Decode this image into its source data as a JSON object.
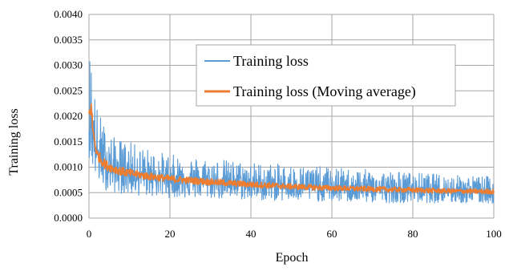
{
  "chart_data": {
    "type": "line",
    "title": "",
    "xlabel": "Epoch",
    "ylabel": "Training loss",
    "xlim": [
      0,
      100
    ],
    "ylim": [
      0,
      0.004
    ],
    "x_ticks": [
      0,
      20,
      40,
      60,
      80,
      100
    ],
    "x_tick_labels": [
      "0",
      "20",
      "40",
      "60",
      "80",
      "100"
    ],
    "y_ticks": [
      0,
      0.0005,
      0.001,
      0.0015,
      0.002,
      0.0025,
      0.003,
      0.0035,
      0.004
    ],
    "y_tick_labels": [
      "0.0000",
      "0.0005",
      "0.0010",
      "0.0015",
      "0.0020",
      "0.0025",
      "0.0030",
      "0.0035",
      "0.0040"
    ],
    "grid": true,
    "legend_position": "top-right",
    "series": [
      {
        "name": "Training loss",
        "color": "#5B9BD5",
        "style": "noisy-band",
        "x": [
          0,
          0.5,
          1,
          2,
          4,
          6,
          8,
          10,
          15,
          20,
          30,
          40,
          50,
          60,
          70,
          80,
          90,
          100
        ],
        "center": [
          0.0018,
          0.0019,
          0.0016,
          0.00125,
          0.00105,
          0.00097,
          0.00092,
          0.00088,
          0.00082,
          0.00077,
          0.00071,
          0.00066,
          0.00062,
          0.00059,
          0.00057,
          0.00055,
          0.00053,
          0.00052
        ],
        "upper": [
          0.0033,
          0.0034,
          0.0028,
          0.0022,
          0.0018,
          0.0016,
          0.00155,
          0.0015,
          0.00135,
          0.00125,
          0.00118,
          0.0011,
          0.00105,
          0.001,
          0.00095,
          0.0009,
          0.00085,
          0.00082
        ],
        "lower": [
          0.0012,
          0.0011,
          0.0009,
          0.0007,
          0.00055,
          0.0005,
          0.00048,
          0.00045,
          0.00042,
          0.0004,
          0.00038,
          0.00035,
          0.00033,
          0.00032,
          0.0003,
          0.0003,
          0.00029,
          0.00028
        ]
      },
      {
        "name": "Training loss (Moving average)",
        "color": "#ED7D31",
        "style": "smooth-band",
        "x": [
          0,
          0.5,
          1,
          2,
          4,
          6,
          8,
          10,
          15,
          20,
          30,
          40,
          50,
          60,
          70,
          80,
          90,
          100
        ],
        "values": [
          0.002,
          0.0022,
          0.0017,
          0.00125,
          0.00105,
          0.00097,
          0.00092,
          0.00088,
          0.00082,
          0.00077,
          0.00071,
          0.00066,
          0.00062,
          0.00059,
          0.00057,
          0.00055,
          0.00053,
          0.00052
        ]
      }
    ]
  }
}
